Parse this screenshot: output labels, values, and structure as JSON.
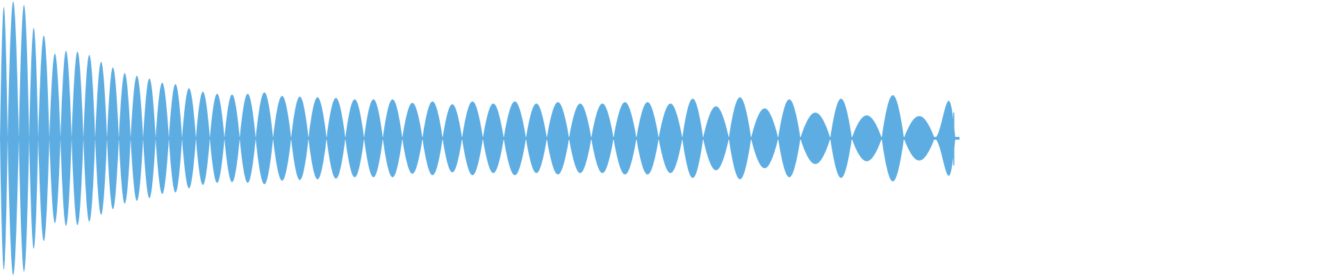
{
  "chart_data": {
    "type": "area",
    "title": "",
    "xlabel": "",
    "ylabel": "",
    "ylim": [
      -1,
      1
    ],
    "grid": false,
    "legend": "none",
    "color": "#5DADE2",
    "background": "#FFFFFF",
    "envelope_peaks": [
      0.945,
      0.985,
      0.96,
      0.795,
      0.74,
      0.61,
      0.63,
      0.625,
      0.6,
      0.55,
      0.51,
      0.47,
      0.45,
      0.43,
      0.4,
      0.39,
      0.36,
      0.335,
      0.32,
      0.315,
      0.32,
      0.33,
      0.305,
      0.3,
      0.295,
      0.29,
      0.28,
      0.28,
      0.28,
      0.255,
      0.265,
      0.245,
      0.265,
      0.25,
      0.265,
      0.25,
      0.26,
      0.25,
      0.25,
      0.26,
      0.26,
      0.25,
      0.285,
      0.23,
      0.295,
      0.215,
      0.28,
      0.185,
      0.285,
      0.165,
      0.31,
      0.16,
      0.27
    ]
  }
}
